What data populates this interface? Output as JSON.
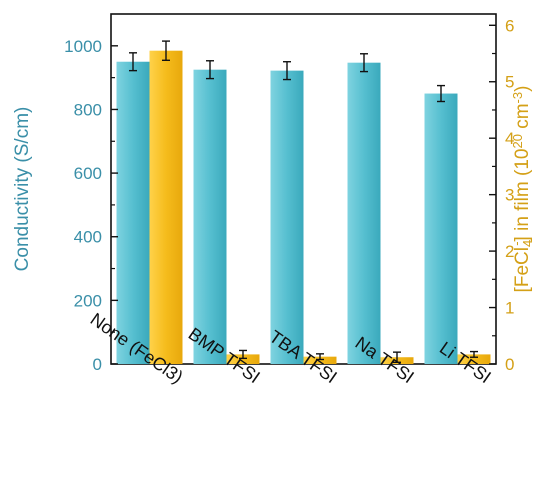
{
  "chart_data": {
    "type": "bar",
    "categories": [
      "None (FeCl3)",
      "BMP TFSI",
      "TBA TFSI",
      "Na TFSI",
      "Li TFSI"
    ],
    "y_left": {
      "label": "Conductivity (S/cm)",
      "range": [
        0,
        1100
      ],
      "ticks": [
        0,
        200,
        400,
        600,
        800,
        1000
      ],
      "color": "#3a8fa8"
    },
    "y_right": {
      "label_prefix": "[FeCl",
      "label_sub": "4",
      "label_sup": "-",
      "label_mid": "] in film (10",
      "label_exp": "20",
      "label_unit": " cm",
      "label_unit_exp": "-3",
      "label_end": ")",
      "range": [
        0,
        6.2
      ],
      "ticks": [
        0,
        1,
        2,
        3,
        4,
        5,
        6
      ],
      "color": "#d4a017"
    },
    "series": [
      {
        "axis": "left",
        "color": "#56bfd0",
        "values": [
          950,
          925,
          922,
          947,
          850
        ],
        "errors": [
          28,
          28,
          28,
          28,
          25
        ]
      },
      {
        "axis": "right",
        "color": "#f5bc1c",
        "values": [
          5.55,
          0.17,
          0.13,
          0.12,
          0.17
        ],
        "errors": [
          0.17,
          0.07,
          0.05,
          0.09,
          0.05
        ]
      }
    ],
    "grid": false,
    "legend": "none"
  }
}
